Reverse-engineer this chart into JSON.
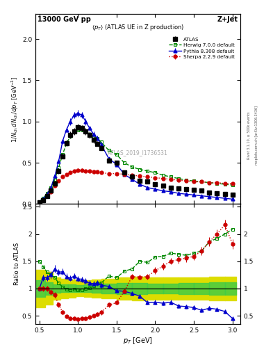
{
  "atlas_x": [
    0.5,
    0.55,
    0.6,
    0.65,
    0.7,
    0.75,
    0.8,
    0.85,
    0.9,
    0.95,
    1.0,
    1.05,
    1.1,
    1.15,
    1.2,
    1.25,
    1.3,
    1.4,
    1.5,
    1.6,
    1.7,
    1.8,
    1.9,
    2.0,
    2.1,
    2.2,
    2.3,
    2.4,
    2.5,
    2.6,
    2.7,
    2.8,
    2.9,
    3.0
  ],
  "atlas_y": [
    0.02,
    0.05,
    0.1,
    0.16,
    0.25,
    0.4,
    0.58,
    0.74,
    0.84,
    0.88,
    0.93,
    0.92,
    0.88,
    0.84,
    0.78,
    0.73,
    0.68,
    0.53,
    0.5,
    0.38,
    0.33,
    0.28,
    0.27,
    0.24,
    0.22,
    0.2,
    0.19,
    0.18,
    0.17,
    0.16,
    0.14,
    0.13,
    0.12,
    0.11
  ],
  "atlas_yerr": [
    0.005,
    0.01,
    0.01,
    0.015,
    0.02,
    0.03,
    0.03,
    0.04,
    0.04,
    0.04,
    0.04,
    0.04,
    0.04,
    0.04,
    0.04,
    0.03,
    0.03,
    0.03,
    0.03,
    0.02,
    0.02,
    0.02,
    0.02,
    0.02,
    0.01,
    0.01,
    0.01,
    0.01,
    0.01,
    0.01,
    0.01,
    0.01,
    0.01,
    0.01
  ],
  "herwig_x": [
    0.5,
    0.55,
    0.6,
    0.65,
    0.7,
    0.75,
    0.8,
    0.85,
    0.9,
    0.95,
    1.0,
    1.05,
    1.1,
    1.15,
    1.2,
    1.25,
    1.3,
    1.4,
    1.5,
    1.6,
    1.7,
    1.8,
    1.9,
    2.0,
    2.1,
    2.2,
    2.3,
    2.4,
    2.5,
    2.6,
    2.7,
    2.8,
    2.9,
    3.0
  ],
  "herwig_y": [
    0.03,
    0.07,
    0.13,
    0.2,
    0.3,
    0.44,
    0.6,
    0.73,
    0.82,
    0.87,
    0.9,
    0.9,
    0.88,
    0.85,
    0.82,
    0.8,
    0.75,
    0.65,
    0.6,
    0.5,
    0.45,
    0.42,
    0.4,
    0.38,
    0.35,
    0.33,
    0.31,
    0.29,
    0.28,
    0.27,
    0.26,
    0.25,
    0.24,
    0.23
  ],
  "pythia_x": [
    0.5,
    0.55,
    0.6,
    0.65,
    0.7,
    0.75,
    0.8,
    0.85,
    0.9,
    0.95,
    1.0,
    1.05,
    1.1,
    1.15,
    1.2,
    1.25,
    1.3,
    1.4,
    1.5,
    1.6,
    1.7,
    1.8,
    1.9,
    2.0,
    2.1,
    2.2,
    2.3,
    2.4,
    2.5,
    2.6,
    2.7,
    2.8,
    2.9,
    3.0
  ],
  "pythia_y": [
    0.02,
    0.06,
    0.12,
    0.2,
    0.34,
    0.52,
    0.76,
    0.9,
    1.0,
    1.08,
    1.1,
    1.08,
    1.0,
    0.92,
    0.85,
    0.8,
    0.72,
    0.55,
    0.48,
    0.36,
    0.3,
    0.24,
    0.2,
    0.18,
    0.16,
    0.15,
    0.13,
    0.12,
    0.11,
    0.1,
    0.09,
    0.08,
    0.07,
    0.06
  ],
  "pythia_yerr": [
    0.005,
    0.01,
    0.01,
    0.01,
    0.02,
    0.02,
    0.03,
    0.03,
    0.04,
    0.04,
    0.04,
    0.04,
    0.04,
    0.03,
    0.03,
    0.03,
    0.03,
    0.02,
    0.02,
    0.02,
    0.01,
    0.01,
    0.01,
    0.01,
    0.01,
    0.01,
    0.01,
    0.01,
    0.01,
    0.01,
    0.01,
    0.01,
    0.005,
    0.005
  ],
  "sherpa_x": [
    0.5,
    0.55,
    0.6,
    0.65,
    0.7,
    0.75,
    0.8,
    0.85,
    0.9,
    0.95,
    1.0,
    1.05,
    1.1,
    1.15,
    1.2,
    1.25,
    1.3,
    1.4,
    1.5,
    1.6,
    1.7,
    1.8,
    1.9,
    2.0,
    2.1,
    2.2,
    2.3,
    2.4,
    2.5,
    2.6,
    2.7,
    2.8,
    2.9,
    3.0
  ],
  "sherpa_y": [
    0.02,
    0.05,
    0.1,
    0.15,
    0.22,
    0.28,
    0.33,
    0.36,
    0.38,
    0.4,
    0.41,
    0.41,
    0.4,
    0.4,
    0.39,
    0.39,
    0.38,
    0.37,
    0.37,
    0.36,
    0.35,
    0.34,
    0.33,
    0.32,
    0.31,
    0.3,
    0.29,
    0.28,
    0.27,
    0.27,
    0.26,
    0.26,
    0.25,
    0.25
  ],
  "sherpa_yerr": [
    0.005,
    0.01,
    0.01,
    0.01,
    0.01,
    0.01,
    0.01,
    0.01,
    0.02,
    0.02,
    0.02,
    0.02,
    0.02,
    0.02,
    0.02,
    0.01,
    0.01,
    0.01,
    0.01,
    0.01,
    0.01,
    0.01,
    0.01,
    0.01,
    0.01,
    0.01,
    0.01,
    0.01,
    0.01,
    0.01,
    0.01,
    0.01,
    0.01,
    0.01
  ],
  "ratio_herwig": [
    1.5,
    1.4,
    1.3,
    1.25,
    1.2,
    1.1,
    1.03,
    0.99,
    0.98,
    0.99,
    0.97,
    0.98,
    1.0,
    1.01,
    1.05,
    1.1,
    1.1,
    1.23,
    1.2,
    1.32,
    1.36,
    1.5,
    1.48,
    1.58,
    1.59,
    1.65,
    1.63,
    1.61,
    1.65,
    1.69,
    1.86,
    1.92,
    2.0,
    2.09
  ],
  "ratio_pythia": [
    1.0,
    1.2,
    1.2,
    1.25,
    1.36,
    1.3,
    1.31,
    1.22,
    1.19,
    1.23,
    1.18,
    1.17,
    1.14,
    1.1,
    1.09,
    1.1,
    1.06,
    1.04,
    0.96,
    0.95,
    0.91,
    0.86,
    0.74,
    0.75,
    0.73,
    0.75,
    0.68,
    0.67,
    0.65,
    0.6,
    0.64,
    0.62,
    0.58,
    0.45
  ],
  "ratio_pythia_err": [
    0.05,
    0.06,
    0.06,
    0.07,
    0.07,
    0.06,
    0.06,
    0.06,
    0.05,
    0.05,
    0.05,
    0.05,
    0.05,
    0.05,
    0.05,
    0.05,
    0.05,
    0.04,
    0.04,
    0.04,
    0.04,
    0.04,
    0.04,
    0.04,
    0.04,
    0.04,
    0.04,
    0.04,
    0.04,
    0.04,
    0.04,
    0.04,
    0.04,
    0.04
  ],
  "ratio_sherpa": [
    1.0,
    1.0,
    1.0,
    0.94,
    0.88,
    0.7,
    0.57,
    0.49,
    0.45,
    0.45,
    0.44,
    0.45,
    0.45,
    0.48,
    0.5,
    0.53,
    0.56,
    0.7,
    0.74,
    0.95,
    1.22,
    1.21,
    1.22,
    1.33,
    1.41,
    1.5,
    1.53,
    1.56,
    1.59,
    1.69,
    1.86,
    2.0,
    2.17,
    1.82
  ],
  "ratio_sherpa_err": [
    0.05,
    0.05,
    0.05,
    0.05,
    0.05,
    0.05,
    0.04,
    0.04,
    0.04,
    0.04,
    0.04,
    0.04,
    0.04,
    0.04,
    0.04,
    0.04,
    0.04,
    0.04,
    0.04,
    0.04,
    0.05,
    0.05,
    0.05,
    0.06,
    0.06,
    0.06,
    0.07,
    0.07,
    0.07,
    0.08,
    0.08,
    0.09,
    0.09,
    0.09
  ],
  "band_x_edges": [
    0.45,
    0.575,
    0.675,
    0.775,
    0.875,
    0.975,
    1.075,
    1.175,
    1.3,
    1.5,
    1.7,
    1.9,
    2.1,
    2.3,
    2.5,
    2.7,
    2.9,
    3.05
  ],
  "band_yellow": [
    0.35,
    0.3,
    0.2,
    0.18,
    0.16,
    0.14,
    0.15,
    0.17,
    0.18,
    0.2,
    0.22,
    0.2,
    0.2,
    0.2,
    0.2,
    0.22,
    0.22
  ],
  "band_green": [
    0.15,
    0.12,
    0.08,
    0.07,
    0.07,
    0.06,
    0.07,
    0.08,
    0.09,
    0.1,
    0.1,
    0.09,
    0.09,
    0.1,
    0.1,
    0.11,
    0.11
  ],
  "colors": {
    "atlas": "#000000",
    "herwig": "#008800",
    "pythia": "#0000cc",
    "sherpa": "#cc0000",
    "band_green": "#44cc44",
    "band_yellow": "#dddd00"
  },
  "main_ylim": [
    0.0,
    2.3
  ],
  "ratio_ylim": [
    0.35,
    2.55
  ],
  "ratio_yticks": [
    0.5,
    1.0,
    1.5,
    2.0,
    2.5
  ],
  "ratio_yticklabels": [
    "0.5",
    "1",
    "1.5",
    "2",
    "2.5"
  ],
  "main_yticks": [
    0.0,
    0.5,
    1.0,
    1.5,
    2.0
  ],
  "xlim": [
    0.45,
    3.1
  ],
  "xticks": [
    0.5,
    1.0,
    1.5,
    2.0,
    2.5,
    3.0
  ]
}
